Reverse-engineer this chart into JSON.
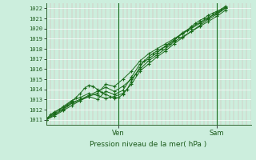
{
  "xlabel": "Pression niveau de la mer( hPa )",
  "ylim": [
    1010.5,
    1022.5
  ],
  "xlim": [
    0,
    48
  ],
  "bg_color": "#cceedd",
  "plot_bg_color": "#cceedd",
  "line_color": "#1a6b1a",
  "marker_color": "#1a6b1a",
  "tick_label_color": "#1a5a1a",
  "axis_label_color": "#1a5a1a",
  "ven_x": 17,
  "sam_x": 40,
  "ven_label": "Ven",
  "sam_label": "Sam",
  "series": [
    [
      0,
      1011.0,
      1,
      1011.5,
      2,
      1011.8,
      3,
      1012.0,
      4,
      1012.2,
      5,
      1012.5,
      6,
      1012.8,
      7,
      1013.2,
      8,
      1013.6,
      9,
      1014.1,
      10,
      1014.4,
      11,
      1014.3,
      12,
      1014.0,
      13,
      1013.7,
      14,
      1013.5,
      15,
      1013.3,
      16,
      1013.1,
      17,
      1013.2,
      18,
      1013.5,
      19,
      1014.0,
      20,
      1014.8,
      21,
      1015.5,
      22,
      1016.2,
      23,
      1016.8,
      24,
      1017.2,
      25,
      1017.5,
      26,
      1017.8,
      27,
      1018.0,
      28,
      1018.2,
      29,
      1018.5,
      30,
      1018.8,
      31,
      1019.2,
      32,
      1019.5,
      33,
      1019.8,
      34,
      1020.2,
      35,
      1020.5,
      36,
      1020.8,
      37,
      1021.0,
      38,
      1021.3,
      39,
      1021.5,
      40,
      1021.7,
      41,
      1021.9,
      42,
      1022.2
    ],
    [
      0,
      1011.0,
      2,
      1011.4,
      4,
      1011.9,
      6,
      1012.4,
      8,
      1012.9,
      10,
      1013.3,
      12,
      1013.0,
      14,
      1013.8,
      16,
      1013.5,
      18,
      1013.9,
      20,
      1015.2,
      22,
      1016.5,
      24,
      1017.0,
      26,
      1017.6,
      28,
      1018.3,
      30,
      1018.9,
      32,
      1019.6,
      34,
      1020.1,
      36,
      1020.6,
      38,
      1021.1,
      40,
      1021.5,
      42,
      1022.0
    ],
    [
      0,
      1011.0,
      2,
      1011.6,
      4,
      1012.1,
      6,
      1012.7,
      8,
      1013.0,
      10,
      1013.4,
      12,
      1013.8,
      14,
      1014.2,
      16,
      1013.8,
      18,
      1014.3,
      20,
      1015.0,
      22,
      1016.0,
      24,
      1016.8,
      26,
      1017.4,
      28,
      1018.0,
      30,
      1018.7,
      32,
      1019.2,
      34,
      1019.7,
      36,
      1020.2,
      38,
      1020.7,
      40,
      1021.2,
      42,
      1021.8
    ],
    [
      0,
      1011.1,
      2,
      1011.7,
      4,
      1012.3,
      6,
      1012.9,
      8,
      1013.2,
      10,
      1013.6,
      12,
      1013.4,
      14,
      1013.1,
      16,
      1013.3,
      18,
      1013.6,
      20,
      1014.5,
      22,
      1015.8,
      24,
      1016.5,
      26,
      1017.2,
      28,
      1017.8,
      30,
      1018.5,
      32,
      1019.1,
      34,
      1019.7,
      36,
      1020.3,
      38,
      1020.9,
      40,
      1021.4,
      42,
      1022.0
    ],
    [
      0,
      1011.0,
      2,
      1011.5,
      4,
      1012.0,
      6,
      1012.6,
      8,
      1012.9,
      10,
      1013.3,
      12,
      1013.6,
      14,
      1014.5,
      16,
      1014.3,
      18,
      1015.0,
      20,
      1015.8,
      22,
      1016.8,
      24,
      1017.5,
      26,
      1018.0,
      28,
      1018.5,
      30,
      1019.0,
      32,
      1019.5,
      34,
      1020.0,
      36,
      1020.5,
      38,
      1021.0,
      40,
      1021.6,
      42,
      1022.1
    ]
  ],
  "yticks": [
    1011,
    1012,
    1013,
    1014,
    1015,
    1016,
    1017,
    1018,
    1019,
    1020,
    1021,
    1022
  ]
}
